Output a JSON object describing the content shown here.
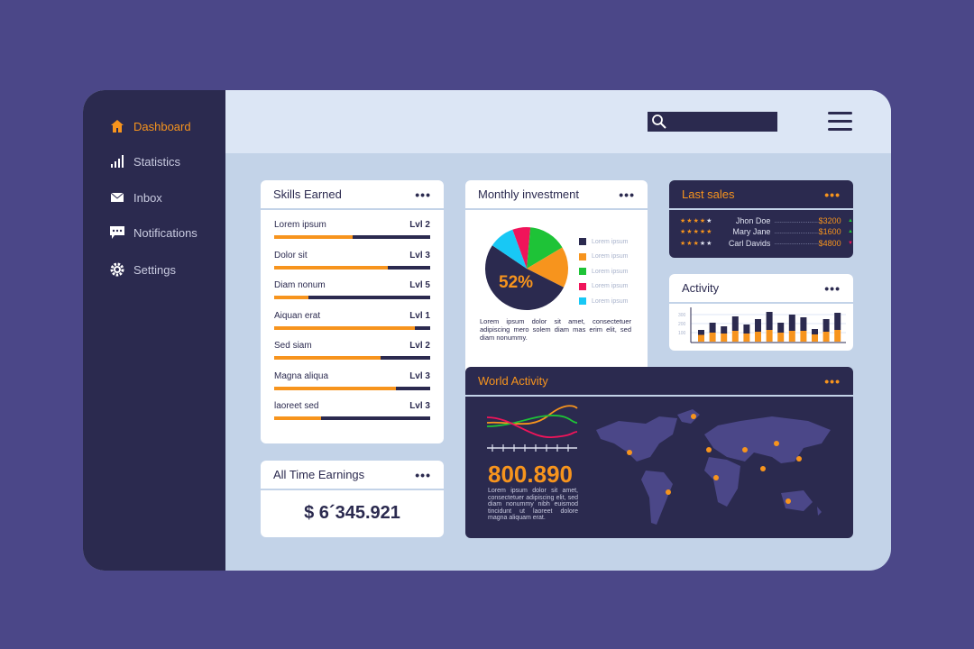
{
  "sidebar": {
    "items": [
      {
        "label": "Dashboard",
        "icon": "home-icon",
        "active": true
      },
      {
        "label": "Statistics",
        "icon": "bar-chart-icon"
      },
      {
        "label": "Inbox",
        "icon": "envelope-icon"
      },
      {
        "label": "Notifications",
        "icon": "chat-icon"
      },
      {
        "label": "Settings",
        "icon": "gear-icon"
      }
    ]
  },
  "header": {
    "search_placeholder": ""
  },
  "skills": {
    "title": "Skills Earned",
    "items": [
      {
        "name": "Lorem ipsum",
        "level": "Lvl 2",
        "progress": 0.5
      },
      {
        "name": "Dolor sit",
        "level": "Lvl 3",
        "progress": 0.73
      },
      {
        "name": "Diam nonum",
        "level": "Lvl 5",
        "progress": 0.22
      },
      {
        "name": "Aiquan erat",
        "level": "Lvl 1",
        "progress": 0.9
      },
      {
        "name": "Sed siam",
        "level": "Lvl 2",
        "progress": 0.68
      },
      {
        "name": "Magna aliqua",
        "level": "Lvl 3",
        "progress": 0.78
      },
      {
        "name": "laoreet sed",
        "level": "Lvl 3",
        "progress": 0.3
      }
    ]
  },
  "earnings": {
    "title": "All Time Earnings",
    "value": "$ 6´345.921"
  },
  "investment": {
    "title": "Monthly investment",
    "center_label": "52%",
    "slices": [
      {
        "label": "Lorem ipsum",
        "color": "#2b2a4f",
        "value": 52
      },
      {
        "label": "Lorem ipsum",
        "color": "#f7941d",
        "value": 16
      },
      {
        "label": "Lorem ipsum",
        "color": "#1ec337",
        "value": 15
      },
      {
        "label": "Lorem ipsum",
        "color": "#f0145a",
        "value": 7
      },
      {
        "label": "Lorem ipsum",
        "color": "#18c8f5",
        "value": 10
      }
    ],
    "text": "Lorem ipsum dolor sit amet, consectetuer adipiscing mero solem diam mas erim elit, sed diam nonummy."
  },
  "last_sales": {
    "title": "Last sales",
    "rows": [
      {
        "stars": 4,
        "name": "Jhon Doe",
        "amount": "$3200",
        "trend": "up"
      },
      {
        "stars": 5,
        "name": "Mary Jane",
        "amount": "$1600",
        "trend": "up"
      },
      {
        "stars": 3,
        "name": "Carl Davids",
        "amount": "$4800",
        "trend": "down"
      }
    ]
  },
  "activity": {
    "title": "Activity",
    "y_ticks": [
      "300",
      "200",
      "100"
    ],
    "chart_data": {
      "type": "bar",
      "stacked": true,
      "ylim": [
        0,
        350
      ],
      "series": [
        {
          "values": [
            75,
            100,
            90,
            120,
            90,
            110,
            130,
            100,
            120,
            120,
            80,
            110,
            130
          ],
          "color": "#f7941d"
        },
        {
          "values": [
            55,
            110,
            80,
            160,
            100,
            140,
            200,
            110,
            180,
            150,
            60,
            140,
            190
          ],
          "color": "#2b2a4f"
        }
      ]
    }
  },
  "world": {
    "title": "World Activity",
    "value": "800.890",
    "text": "Lorem ipsum dolor sit amet, consectetuer adipiscing elit, sed diam nonummy nibh euismod tincidunt ut laoreet dolore magna aliquam erat."
  },
  "colors": {
    "accent": "#f7941d",
    "navy": "#2b2a4f",
    "background": "#4b4788"
  }
}
